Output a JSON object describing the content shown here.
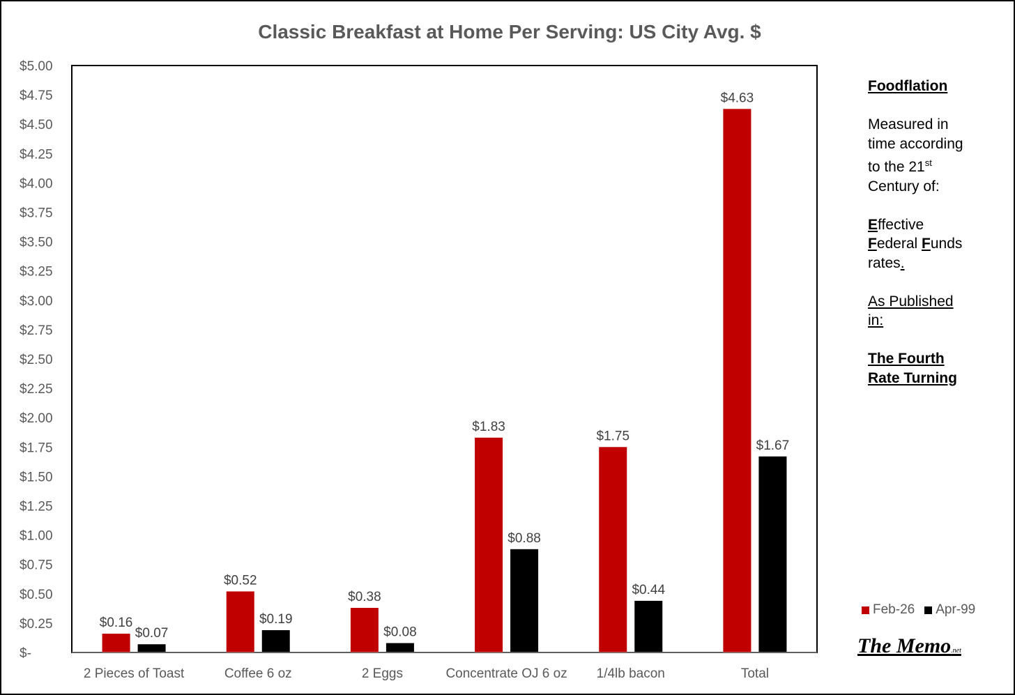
{
  "chart_data": {
    "type": "bar",
    "title": "Classic Breakfast at Home Per Serving: US City Avg. $",
    "categories": [
      "2 Pieces of Toast",
      "Coffee 6 oz",
      "2 Eggs",
      "Concentrate OJ 6 oz",
      "1/4lb bacon",
      "Total"
    ],
    "series": [
      {
        "name": "Feb-26",
        "color": "#c00000",
        "values": [
          0.16,
          0.52,
          0.38,
          1.83,
          1.75,
          4.63
        ],
        "labels": [
          "$0.16",
          "$0.52",
          "$0.38",
          "$1.83",
          "$1.75",
          "$4.63"
        ]
      },
      {
        "name": "Apr-99",
        "color": "#000000",
        "values": [
          0.07,
          0.19,
          0.08,
          0.88,
          0.44,
          1.67
        ],
        "labels": [
          "$0.07",
          "$0.19",
          "$0.08",
          "$0.88",
          "$0.44",
          "$1.67"
        ]
      }
    ],
    "ylim": [
      0,
      5
    ],
    "yticks": [
      0,
      0.25,
      0.5,
      0.75,
      1,
      1.25,
      1.5,
      1.75,
      2,
      2.25,
      2.5,
      2.75,
      3,
      3.25,
      3.5,
      3.75,
      4,
      4.25,
      4.5,
      4.75,
      5
    ],
    "ytick_labels": [
      "$-",
      "$0.25",
      "$0.50",
      "$0.75",
      "$1.00",
      "$1.25",
      "$1.50",
      "$1.75",
      "$2.00",
      "$2.25",
      "$2.50",
      "$2.75",
      "$3.00",
      "$3.25",
      "$3.50",
      "$3.75",
      "$4.00",
      "$4.25",
      "$4.50",
      "$4.75",
      "$5.00"
    ],
    "xlabel": "",
    "ylabel": "",
    "grid": false,
    "legend_position": "bottom-right"
  },
  "sidebar": {
    "heading": "Foodflation",
    "line1": "Measured in",
    "line2": "time according",
    "line3_pre": "to the 21",
    "line3_sup": "st",
    "line4": "Century of:",
    "eff_initial": "E",
    "eff_rest": "ffective",
    "fed_initial": "F",
    "fed_rest": "ederal ",
    "funds_initial": "F",
    "funds_rest": "unds",
    "rates": "rates",
    "rates_dot": ".",
    "published_1": "As Published",
    "published_2": "in:",
    "book_1": "The Fourth",
    "book_2": "Rate Turning"
  },
  "logo": {
    "main": "The Memo",
    "suffix": ".net"
  }
}
